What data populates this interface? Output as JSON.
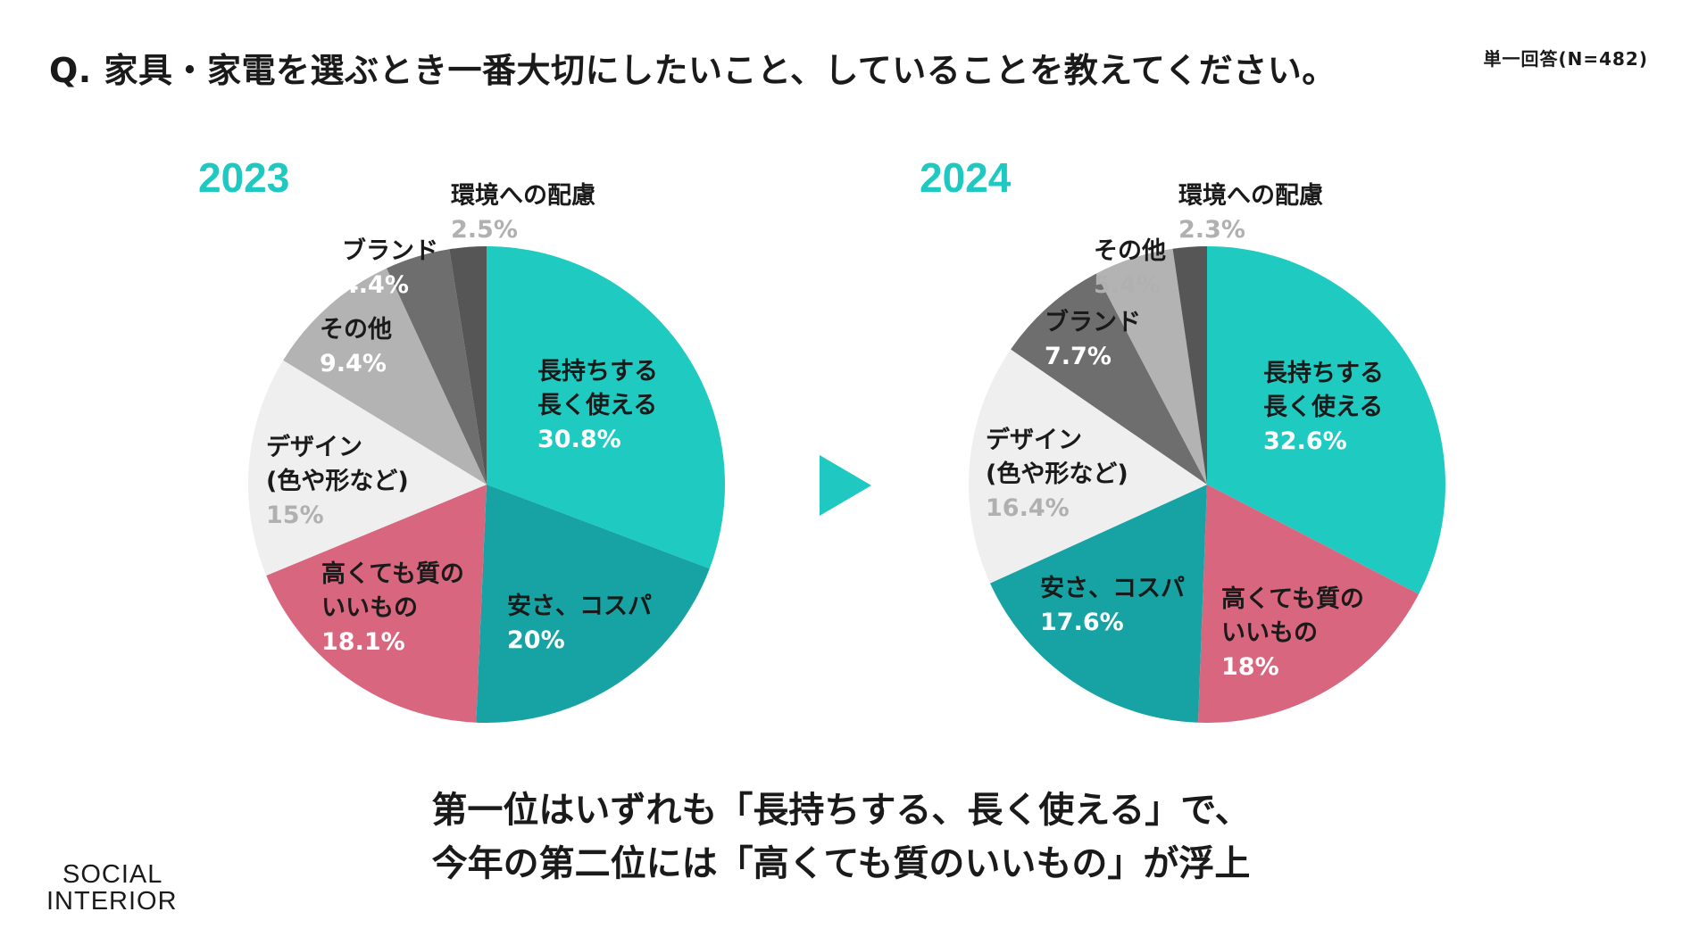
{
  "header": {
    "question": "Q. 家具・家電を選ぶとき一番大切にしたいこと、していることを教えてください。",
    "note": "単一回答(N=482)"
  },
  "colors": {
    "teal_light": "#1fcbc1",
    "teal_dark": "#17a3a3",
    "pink": "#d9667f",
    "light_gray": "#efefef",
    "mid_gray": "#b3b3b3",
    "dark_gray": "#6e6e6e",
    "darkest_gray": "#565656",
    "accent": "#1fc8c0"
  },
  "chart_data": [
    {
      "type": "pie",
      "title": "2023",
      "slices": [
        {
          "label": "長持ちする 長く使える",
          "label_lines": [
            "長持ちする",
            "長く使える"
          ],
          "value": 30.8,
          "value_text": "30.8%",
          "color": "#1fcbc1"
        },
        {
          "label": "安さ、コスパ",
          "label_lines": [
            "安さ、コスパ"
          ],
          "value": 20,
          "value_text": "20%",
          "color": "#17a3a3"
        },
        {
          "label": "高くても質の いいもの",
          "label_lines": [
            "高くても質の",
            "いいもの"
          ],
          "value": 18.1,
          "value_text": "18.1%",
          "color": "#d9667f"
        },
        {
          "label": "デザイン (色や形など)",
          "label_lines": [
            "デザイン",
            "(色や形など)"
          ],
          "value": 15,
          "value_text": "15%",
          "color": "#efefef"
        },
        {
          "label": "その他",
          "label_lines": [
            "その他"
          ],
          "value": 9.4,
          "value_text": "9.4%",
          "color": "#b3b3b3"
        },
        {
          "label": "ブランド",
          "label_lines": [
            "ブランド"
          ],
          "value": 4.4,
          "value_text": "4.4%",
          "color": "#6e6e6e"
        },
        {
          "label": "環境への配慮",
          "label_lines": [
            "環境への配慮"
          ],
          "value": 2.5,
          "value_text": "2.5%",
          "color": "#565656"
        }
      ]
    },
    {
      "type": "pie",
      "title": "2024",
      "slices": [
        {
          "label": "長持ちする 長く使える",
          "label_lines": [
            "長持ちする",
            "長く使える"
          ],
          "value": 32.6,
          "value_text": "32.6%",
          "color": "#1fcbc1"
        },
        {
          "label": "高くても質の いいもの",
          "label_lines": [
            "高くても質の",
            "いいもの"
          ],
          "value": 18,
          "value_text": "18%",
          "color": "#d9667f"
        },
        {
          "label": "安さ、コスパ",
          "label_lines": [
            "安さ、コスパ"
          ],
          "value": 17.6,
          "value_text": "17.6%",
          "color": "#17a3a3"
        },
        {
          "label": "デザイン (色や形など)",
          "label_lines": [
            "デザイン",
            "(色や形など)"
          ],
          "value": 16.4,
          "value_text": "16.4%",
          "color": "#efefef"
        },
        {
          "label": "ブランド",
          "label_lines": [
            "ブランド"
          ],
          "value": 7.7,
          "value_text": "7.7%",
          "color": "#6e6e6e"
        },
        {
          "label": "その他",
          "label_lines": [
            "その他"
          ],
          "value": 5.4,
          "value_text": "5.4%",
          "color": "#b3b3b3"
        },
        {
          "label": "環境への配慮",
          "label_lines": [
            "環境への配慮"
          ],
          "value": 2.3,
          "value_text": "2.3%",
          "color": "#565656"
        }
      ]
    }
  ],
  "conclusion": {
    "line1": "第一位はいずれも「長持ちする、長く使える」で、",
    "line2_prefix": "今年の第二位には「",
    "line2_highlight": "高くても質のいいもの",
    "line2_suffix": "」が浮上"
  },
  "logo": {
    "line1": "SOCIAL",
    "line2": "INTERIOR"
  }
}
